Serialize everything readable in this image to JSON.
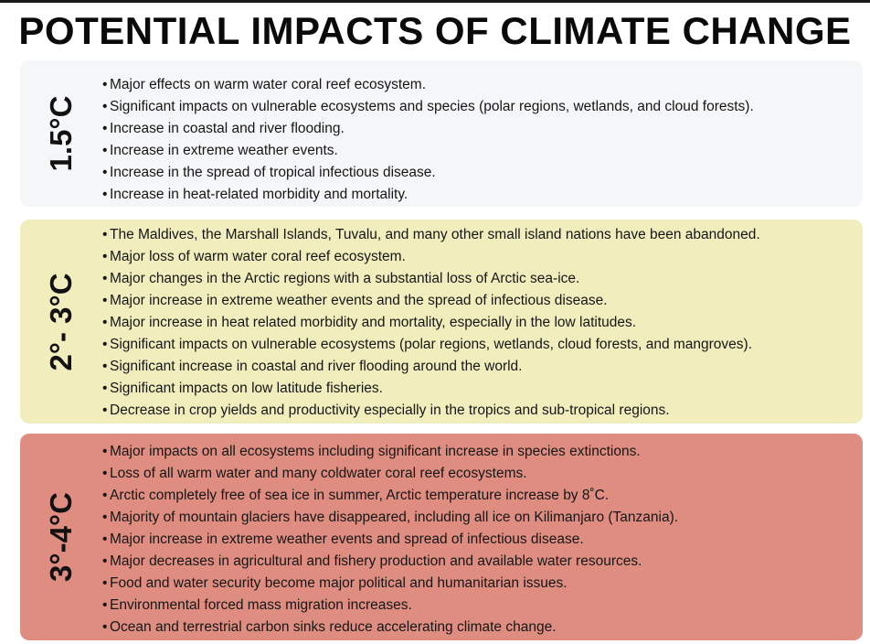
{
  "title": "POTENTIAL IMPACTS OF CLIMATE CHANGE",
  "colors": {
    "band_1": "#f5f6f8",
    "band_2": "#f1edbc",
    "band_3": "#de8d80"
  },
  "bands": [
    {
      "label": "1.5°C",
      "items": [
        "Major effects on warm water coral reef ecosystem.",
        "Significant impacts on vulnerable ecosystems and species (polar regions, wetlands, and cloud forests).",
        "Increase in coastal and river flooding.",
        "Increase in extreme weather events.",
        "Increase in the spread of tropical infectious disease.",
        "Increase in heat-related morbidity and mortality."
      ]
    },
    {
      "label": "2°- 3°C",
      "items": [
        "The Maldives, the Marshall Islands, Tuvalu, and many other small island nations have been abandoned.",
        "Major loss of warm water coral reef ecosystem.",
        "Major changes in the Arctic regions with a substantial loss of Arctic sea-ice.",
        "Major increase in extreme weather events and the spread of infectious disease.",
        "Major increase in heat related morbidity and mortality, especially in the low latitudes.",
        "Significant impacts on vulnerable ecosystems (polar regions, wetlands, cloud forests, and mangroves).",
        "Significant increase in coastal and river flooding around the world.",
        "Significant impacts on low latitude fisheries.",
        "Decrease in crop yields and productivity especially in the tropics and sub-tropical regions."
      ]
    },
    {
      "label": "3°-4°C",
      "items": [
        "Major impacts on all ecosystems including significant increase in species extinctions.",
        "Loss of all warm water and many coldwater coral reef ecosystems.",
        "Arctic completely free of sea ice in summer, Arctic temperature increase by 8˚C.",
        "Majority of mountain glaciers have disappeared, including all ice on Kilimanjaro (Tanzania).",
        "Major increase in extreme weather events and spread of infectious disease.",
        "Major decreases in agricultural and fishery production and available water resources.",
        "Food and water security become major political and humanitarian issues.",
        "Environmental forced mass migration increases.",
        "Ocean and terrestrial carbon sinks reduce accelerating climate change."
      ]
    }
  ]
}
